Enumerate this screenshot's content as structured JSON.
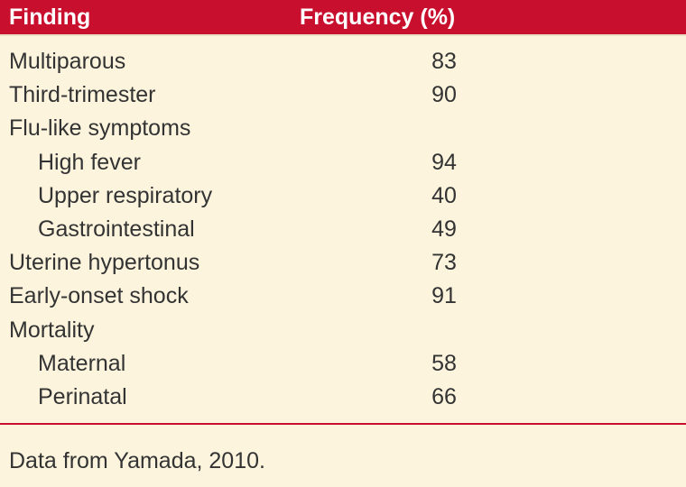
{
  "table": {
    "header": [
      "Finding",
      "Frequency (%)"
    ],
    "rows": [
      {
        "label": "Multiparous",
        "value": 83
      },
      {
        "label": "Third-trimester",
        "value": 90
      },
      {
        "label": "Flu-like symptoms",
        "items": [
          {
            "label": "High fever",
            "value": 94
          },
          {
            "label": "Upper respiratory",
            "value": 40
          },
          {
            "label": "Gastrointestinal",
            "value": 49
          }
        ]
      },
      {
        "label": "Uterine hypertonus",
        "value": 73
      },
      {
        "label": "Early-onset shock",
        "value": 91
      },
      {
        "label": "Mortality",
        "items": [
          {
            "label": "Maternal",
            "value": 58
          },
          {
            "label": "Perinatal",
            "value": 66
          }
        ]
      }
    ],
    "footnote": "Data from Yamada, 2010."
  }
}
